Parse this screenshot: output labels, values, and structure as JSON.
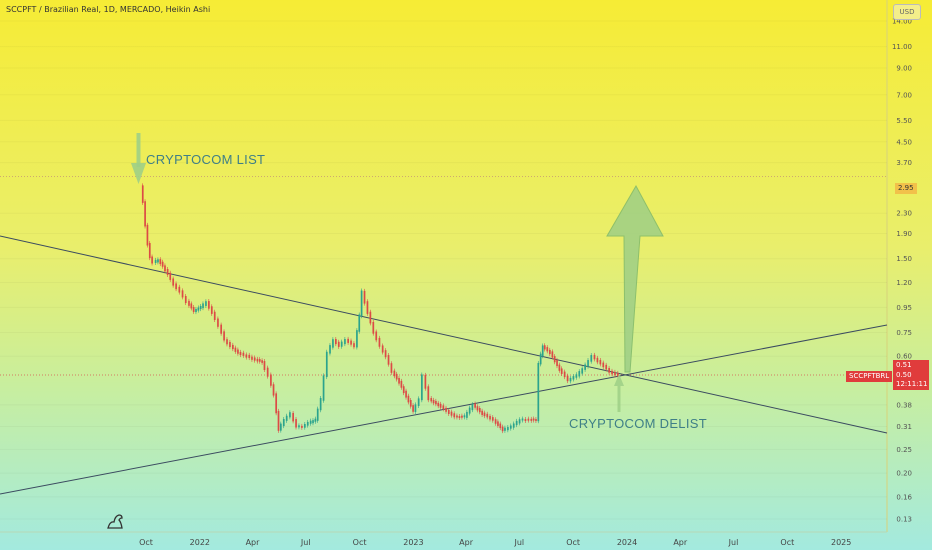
{
  "header": {
    "title": "SCCPFT / Brazilian Real, 1D, MERCADO, Heikin Ashi",
    "currency_button": "USD"
  },
  "annotations": {
    "list_label": "CRYPTOCOM LIST",
    "delist_label": "CRYPTOCOM DELIST"
  },
  "price_scale": {
    "ticks": [
      "14.00",
      "11.00",
      "9.00",
      "7.00",
      "5.50",
      "4.50",
      "3.70",
      "2.30",
      "1.90",
      "1.50",
      "1.20",
      "0.95",
      "0.75",
      "0.60",
      "0.38",
      "0.31",
      "0.25",
      "0.20",
      "0.16",
      "0.13"
    ],
    "highlight_tag": "2.95",
    "symbol_tag": "SCCPFTBRL",
    "price_high": "0.51",
    "price_last": "0.50",
    "countdown": "12:11:11"
  },
  "time_scale": {
    "ticks": [
      "Oct",
      "2022",
      "Apr",
      "Jul",
      "Oct",
      "2023",
      "Apr",
      "Jul",
      "Oct",
      "2024",
      "Apr",
      "Jul",
      "Oct",
      "2025"
    ]
  },
  "colors": {
    "background_top": "#f5ec3b",
    "background_bottom": "#a6ebdf",
    "candle_up": "#2ba38d",
    "candle_down": "#dc4a45",
    "trendline": "#3b4b60",
    "arrow": "#9ecf86",
    "annotation_text": "#3f7f87",
    "tag_red": "#e03c3c"
  },
  "chart_data": {
    "type": "candlestick",
    "scale": "log",
    "ylim": [
      0.12,
      16
    ],
    "series": [
      {
        "name": "SCCPFT / Brazilian Real",
        "points": [
          [
            "2021-09-24",
            2.95
          ],
          [
            "2021-09-28",
            2.55
          ],
          [
            "2021-10-02",
            2.05
          ],
          [
            "2021-10-06",
            1.72
          ],
          [
            "2021-10-10",
            1.52
          ],
          [
            "2021-10-16",
            1.45
          ],
          [
            "2021-10-24",
            1.48
          ],
          [
            "2021-11-01",
            1.4
          ],
          [
            "2021-11-10",
            1.3
          ],
          [
            "2021-11-20",
            1.18
          ],
          [
            "2021-12-01",
            1.1
          ],
          [
            "2021-12-12",
            1.0
          ],
          [
            "2021-12-24",
            0.92
          ],
          [
            "2022-01-05",
            0.95
          ],
          [
            "2022-01-15",
            1.0
          ],
          [
            "2022-01-25",
            0.9
          ],
          [
            "2022-02-05",
            0.8
          ],
          [
            "2022-02-15",
            0.7
          ],
          [
            "2022-02-25",
            0.66
          ],
          [
            "2022-03-10",
            0.62
          ],
          [
            "2022-03-25",
            0.6
          ],
          [
            "2022-04-08",
            0.58
          ],
          [
            "2022-04-20",
            0.57
          ],
          [
            "2022-05-01",
            0.5
          ],
          [
            "2022-05-10",
            0.42
          ],
          [
            "2022-05-18",
            0.3
          ],
          [
            "2022-05-28",
            0.33
          ],
          [
            "2022-06-08",
            0.35
          ],
          [
            "2022-06-18",
            0.31
          ],
          [
            "2022-06-28",
            0.31
          ],
          [
            "2022-07-08",
            0.32
          ],
          [
            "2022-07-20",
            0.33
          ],
          [
            "2022-07-30",
            0.4
          ],
          [
            "2022-08-10",
            0.62
          ],
          [
            "2022-08-20",
            0.7
          ],
          [
            "2022-08-30",
            0.66
          ],
          [
            "2022-09-10",
            0.7
          ],
          [
            "2022-09-25",
            0.66
          ],
          [
            "2022-10-03",
            0.88
          ],
          [
            "2022-10-08",
            1.1
          ],
          [
            "2022-10-18",
            0.9
          ],
          [
            "2022-10-28",
            0.75
          ],
          [
            "2022-11-08",
            0.66
          ],
          [
            "2022-11-18",
            0.6
          ],
          [
            "2022-11-28",
            0.52
          ],
          [
            "2022-12-10",
            0.47
          ],
          [
            "2022-12-22",
            0.41
          ],
          [
            "2023-01-03",
            0.36
          ],
          [
            "2023-01-14",
            0.4
          ],
          [
            "2023-01-20",
            0.5
          ],
          [
            "2023-01-30",
            0.4
          ],
          [
            "2023-02-15",
            0.38
          ],
          [
            "2023-03-01",
            0.36
          ],
          [
            "2023-03-15",
            0.34
          ],
          [
            "2023-04-01",
            0.34
          ],
          [
            "2023-04-15",
            0.38
          ],
          [
            "2023-05-01",
            0.35
          ],
          [
            "2023-05-20",
            0.33
          ],
          [
            "2023-06-05",
            0.3
          ],
          [
            "2023-06-20",
            0.31
          ],
          [
            "2023-07-05",
            0.33
          ],
          [
            "2023-07-20",
            0.33
          ],
          [
            "2023-08-01",
            0.33
          ],
          [
            "2023-08-05",
            0.56
          ],
          [
            "2023-08-12",
            0.66
          ],
          [
            "2023-08-25",
            0.62
          ],
          [
            "2023-09-10",
            0.53
          ],
          [
            "2023-09-25",
            0.48
          ],
          [
            "2023-10-10",
            0.5
          ],
          [
            "2023-10-25",
            0.55
          ],
          [
            "2023-11-05",
            0.6
          ],
          [
            "2023-11-20",
            0.56
          ],
          [
            "2023-12-05",
            0.52
          ],
          [
            "2023-12-20",
            0.5
          ]
        ]
      }
    ]
  }
}
